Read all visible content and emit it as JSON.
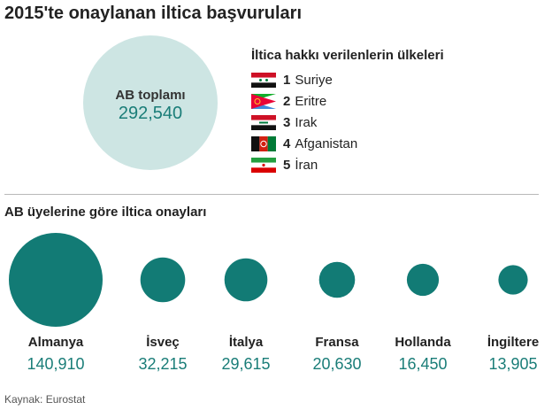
{
  "title": "2015'te onaylanan iltica başvuruları",
  "total": {
    "label": "AB toplamı",
    "value": "292,540"
  },
  "countries": {
    "heading": "İltica hakkı verilenlerin ülkeleri",
    "items": [
      {
        "rank": "1",
        "name": "Suriye",
        "flag": "syria-flag-icon"
      },
      {
        "rank": "2",
        "name": "Eritre",
        "flag": "eritrea-flag-icon"
      },
      {
        "rank": "3",
        "name": "Irak",
        "flag": "iraq-flag-icon"
      },
      {
        "rank": "4",
        "name": "Afganistan",
        "flag": "afghanistan-flag-icon"
      },
      {
        "rank": "5",
        "name": "İran",
        "flag": "iran-flag-icon"
      }
    ]
  },
  "chart_data": {
    "type": "bubble",
    "title": "AB üyelerine göre iltica onayları",
    "categories": [
      "Almanya",
      "İsveç",
      "İtalya",
      "Fransa",
      "Hollanda",
      "İngiltere"
    ],
    "values": [
      140910,
      32215,
      29615,
      20630,
      16450,
      13905
    ],
    "value_labels": [
      "140,910",
      "32,215",
      "29,615",
      "20,630",
      "16,450",
      "13,905"
    ],
    "color": "#127b75"
  },
  "source": "Kaynak: Eurostat",
  "colors": {
    "accent": "#127b75",
    "total_circle": "#cde5e3",
    "value_text": "#1a7d78"
  }
}
